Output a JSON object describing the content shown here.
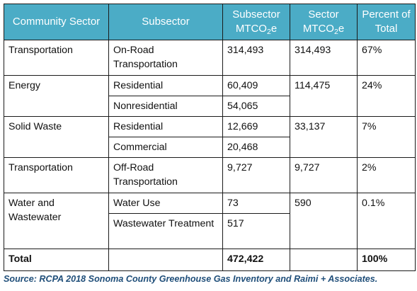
{
  "header": {
    "sector": "Community Sector",
    "subsector": "Subsector",
    "subsector_mtco2e_prefix": "Subsector MTCO",
    "sector_mtco2e_prefix": "Sector MTCO",
    "mtco2e_subscript": "2",
    "mtco2e_suffix": "e",
    "percent": "Percent of Total"
  },
  "rows": [
    {
      "sector": "Transportation",
      "subsector": "On-Road Transportation",
      "subsector_mtco2e": "314,493",
      "sector_mtco2e": "314,493",
      "percent": "67%"
    },
    {
      "sector": "Energy",
      "subsector": "Residential",
      "subsector_mtco2e": "60,409",
      "sector_mtco2e": "114,475",
      "percent": "24%"
    },
    {
      "subsector": "Nonresidential",
      "subsector_mtco2e": "54,065"
    },
    {
      "sector": "Solid Waste",
      "subsector": "Residential",
      "subsector_mtco2e": "12,669",
      "sector_mtco2e": "33,137",
      "percent": "7%"
    },
    {
      "subsector": "Commercial",
      "subsector_mtco2e": "20,468"
    },
    {
      "sector": "Transportation",
      "subsector": "Off-Road Transportation",
      "subsector_mtco2e": "9,727",
      "sector_mtco2e": "9,727",
      "percent": "2%"
    },
    {
      "sector": "Water and Wastewater",
      "subsector": "Water Use",
      "subsector_mtco2e": "73",
      "sector_mtco2e": "590",
      "percent": "0.1%"
    },
    {
      "subsector": "Wastewater Treatment",
      "subsector_mtco2e": "517"
    }
  ],
  "total": {
    "label": "Total",
    "subsector_mtco2e": "472,422",
    "percent": "100%"
  },
  "source": "Source: RCPA 2018 Sonoma County Greenhouse Gas Inventory and Raimi + Associates.",
  "colors": {
    "header_bg": "#4bacc6",
    "header_text": "#ffffff",
    "source_text": "#1f4e79",
    "border": "#1a1a1a"
  }
}
